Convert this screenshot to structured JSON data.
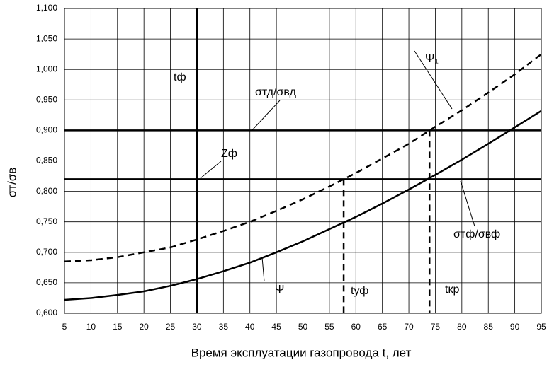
{
  "chart_data": {
    "type": "line",
    "x_label": "Время эксплуатации газопровода t, лет",
    "y_label": "σт/σв",
    "xlim": [
      5,
      95
    ],
    "xticks": [
      5,
      10,
      15,
      20,
      25,
      30,
      35,
      40,
      45,
      50,
      55,
      60,
      65,
      70,
      75,
      80,
      85,
      90,
      95
    ],
    "ylim": [
      0.6,
      1.1
    ],
    "yticks": [
      {
        "value": 0.6,
        "label": "0,600"
      },
      {
        "value": 0.65,
        "label": "0,650"
      },
      {
        "value": 0.7,
        "label": "0,700"
      },
      {
        "value": 0.75,
        "label": "0,750"
      },
      {
        "value": 0.8,
        "label": "0,800"
      },
      {
        "value": 0.85,
        "label": "0,850"
      },
      {
        "value": 0.9,
        "label": "0,900"
      },
      {
        "value": 0.95,
        "label": "0,950"
      },
      {
        "value": 1.0,
        "label": "1,000"
      },
      {
        "value": 1.05,
        "label": "1,050"
      },
      {
        "value": 1.1,
        "label": "1,100"
      }
    ],
    "grid": true,
    "x": [
      5,
      10,
      15,
      20,
      25,
      30,
      35,
      40,
      45,
      50,
      55,
      60,
      65,
      70,
      75,
      80,
      85,
      90,
      95
    ],
    "series": [
      {
        "name": "Ψ",
        "color": "#000000",
        "style": "solid",
        "values": [
          0.622,
          0.625,
          0.63,
          0.636,
          0.645,
          0.656,
          0.669,
          0.683,
          0.7,
          0.718,
          0.738,
          0.758,
          0.78,
          0.803,
          0.827,
          0.852,
          0.878,
          0.905,
          0.932
        ]
      },
      {
        "name": "Ψ₁",
        "color": "#000000",
        "style": "dashed",
        "values": [
          0.685,
          0.687,
          0.692,
          0.7,
          0.708,
          0.721,
          0.735,
          0.75,
          0.768,
          0.787,
          0.808,
          0.83,
          0.854,
          0.878,
          0.906,
          0.933,
          0.962,
          0.992,
          1.025
        ]
      }
    ],
    "hlines": [
      0.9,
      0.82
    ],
    "vlines": [
      30
    ],
    "drop_lines": [
      {
        "x": 57.7,
        "y": 0.82
      },
      {
        "x": 73.9,
        "y": 0.9
      }
    ],
    "annotations": [
      "tф",
      "σтд/σвд",
      "Zф",
      "σтф/σвф",
      "tуф",
      "tкр"
    ]
  }
}
